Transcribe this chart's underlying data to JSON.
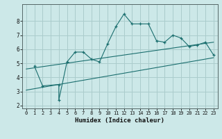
{
  "xlabel": "Humidex (Indice chaleur)",
  "background_color": "#cce8e8",
  "grid_color": "#aacccc",
  "line_color": "#1a6e6e",
  "xlim": [
    -0.5,
    23.5
  ],
  "ylim": [
    1.8,
    9.2
  ],
  "yticks": [
    2,
    3,
    4,
    5,
    6,
    7,
    8
  ],
  "xticks": [
    0,
    1,
    2,
    3,
    4,
    5,
    6,
    7,
    8,
    9,
    10,
    11,
    12,
    13,
    14,
    15,
    16,
    17,
    18,
    19,
    20,
    21,
    22,
    23
  ],
  "line1_x": [
    1,
    2,
    4,
    4,
    5,
    6,
    7,
    8,
    9,
    10,
    11,
    12,
    13,
    14,
    15,
    16,
    17,
    18,
    19,
    20,
    21,
    22,
    23
  ],
  "line1_y": [
    4.8,
    3.4,
    3.5,
    2.4,
    5.1,
    5.8,
    5.8,
    5.3,
    5.1,
    6.4,
    7.6,
    8.5,
    7.8,
    7.8,
    7.8,
    6.6,
    6.5,
    7.0,
    6.8,
    6.2,
    6.3,
    6.5,
    5.6
  ],
  "series2_x": [
    0,
    23
  ],
  "series2_y": [
    4.6,
    6.5
  ],
  "series3_x": [
    0,
    23
  ],
  "series3_y": [
    3.1,
    5.4
  ],
  "tick_fontsize": 5.5,
  "xlabel_fontsize": 6.5
}
